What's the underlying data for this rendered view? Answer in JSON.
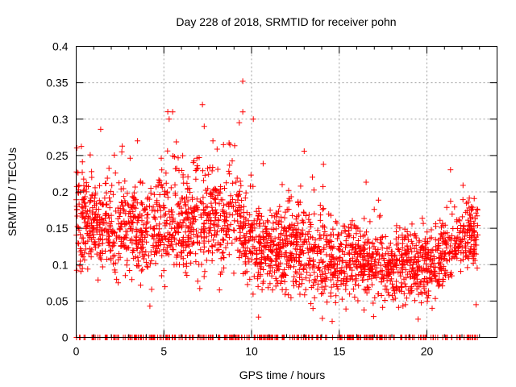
{
  "chart_data": {
    "type": "scatter",
    "title": "Day 228 of 2018, SRMTID for receiver pohn",
    "xlabel": "GPS time / hours",
    "ylabel": "SRMTID / TECUs",
    "xlim": [
      0,
      24
    ],
    "ylim": [
      0,
      0.4
    ],
    "xticks": [
      0,
      5,
      10,
      15,
      20
    ],
    "xtick_labels": [
      "0",
      "5",
      "10",
      "15",
      "20"
    ],
    "yticks": [
      0,
      0.05,
      0.1,
      0.15,
      0.2,
      0.25,
      0.3,
      0.35,
      0.4
    ],
    "ytick_labels": [
      "0",
      "0.05",
      "0.1",
      "0.15",
      "0.2",
      "0.25",
      "0.3",
      "0.35",
      "0.4"
    ],
    "grid": true,
    "marker": "plus",
    "color": "#ff0000",
    "data_span_hours": [
      0,
      22.9
    ],
    "note": "approximately 2500 scattered samples; dense band 0.05-0.25 TECU with outliers up to about 0.35 TECU near 9.5 h; many samples at 0",
    "envelope": [
      {
        "x": 0,
        "center": 0.16,
        "spread": 0.06
      },
      {
        "x": 1,
        "center": 0.16,
        "spread": 0.055
      },
      {
        "x": 2,
        "center": 0.155,
        "spread": 0.055
      },
      {
        "x": 3,
        "center": 0.15,
        "spread": 0.055
      },
      {
        "x": 4,
        "center": 0.145,
        "spread": 0.055
      },
      {
        "x": 5,
        "center": 0.16,
        "spread": 0.065
      },
      {
        "x": 6,
        "center": 0.155,
        "spread": 0.06
      },
      {
        "x": 7,
        "center": 0.155,
        "spread": 0.065
      },
      {
        "x": 8,
        "center": 0.16,
        "spread": 0.06
      },
      {
        "x": 9,
        "center": 0.17,
        "spread": 0.065
      },
      {
        "x": 10,
        "center": 0.13,
        "spread": 0.06
      },
      {
        "x": 11,
        "center": 0.12,
        "spread": 0.055
      },
      {
        "x": 12,
        "center": 0.12,
        "spread": 0.055
      },
      {
        "x": 13,
        "center": 0.12,
        "spread": 0.055
      },
      {
        "x": 14,
        "center": 0.11,
        "spread": 0.05
      },
      {
        "x": 15,
        "center": 0.1,
        "spread": 0.045
      },
      {
        "x": 16,
        "center": 0.105,
        "spread": 0.045
      },
      {
        "x": 17,
        "center": 0.1,
        "spread": 0.045
      },
      {
        "x": 18,
        "center": 0.095,
        "spread": 0.04
      },
      {
        "x": 19,
        "center": 0.095,
        "spread": 0.045
      },
      {
        "x": 20,
        "center": 0.1,
        "spread": 0.045
      },
      {
        "x": 21,
        "center": 0.115,
        "spread": 0.045
      },
      {
        "x": 22,
        "center": 0.135,
        "spread": 0.045
      },
      {
        "x": 23,
        "center": 0.14,
        "spread": 0.04
      }
    ],
    "outliers": [
      {
        "x": 9.5,
        "y": 0.352
      },
      {
        "x": 7.2,
        "y": 0.32
      },
      {
        "x": 5.5,
        "y": 0.31
      },
      {
        "x": 9.5,
        "y": 0.31
      },
      {
        "x": 5.3,
        "y": 0.3
      },
      {
        "x": 10.1,
        "y": 0.3
      },
      {
        "x": 9.3,
        "y": 0.295
      },
      {
        "x": 7.3,
        "y": 0.29
      },
      {
        "x": 1.4,
        "y": 0.286
      },
      {
        "x": 7.8,
        "y": 0.27
      },
      {
        "x": 3.5,
        "y": 0.27
      },
      {
        "x": 13.0,
        "y": 0.256
      },
      {
        "x": 2.6,
        "y": 0.255
      },
      {
        "x": 14.1,
        "y": 0.238
      },
      {
        "x": 20.3,
        "y": 0.04
      },
      {
        "x": 22.8,
        "y": 0.045
      },
      {
        "x": 14.6,
        "y": 0.022
      },
      {
        "x": 19.5,
        "y": 0.025
      },
      {
        "x": 10.4,
        "y": 0.028
      },
      {
        "x": 4.2,
        "y": 0.043
      }
    ]
  }
}
